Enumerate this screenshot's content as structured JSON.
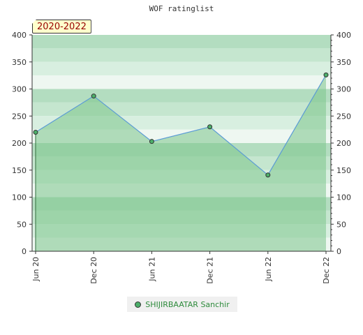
{
  "chart_data": {
    "type": "line",
    "title": "WOF ratinglist",
    "period_label": "2020-2022",
    "categories": [
      "Jun 20",
      "Dec 20",
      "Jun 21",
      "Dec 21",
      "Jun 22",
      "Dec 22"
    ],
    "series": [
      {
        "name": "SHIJIRBAATAR Sanchir",
        "values": [
          220,
          287,
          203,
          230,
          141,
          326
        ]
      }
    ],
    "y_ticks": [
      0,
      50,
      100,
      150,
      200,
      250,
      300,
      350,
      400
    ],
    "ylim": [
      0,
      400
    ],
    "xlabel": "",
    "ylabel": "",
    "legend_position": "bottom",
    "colors": {
      "line": "#5b9bd5",
      "area": "#7cc48a",
      "marker": "#4caf6a"
    }
  }
}
